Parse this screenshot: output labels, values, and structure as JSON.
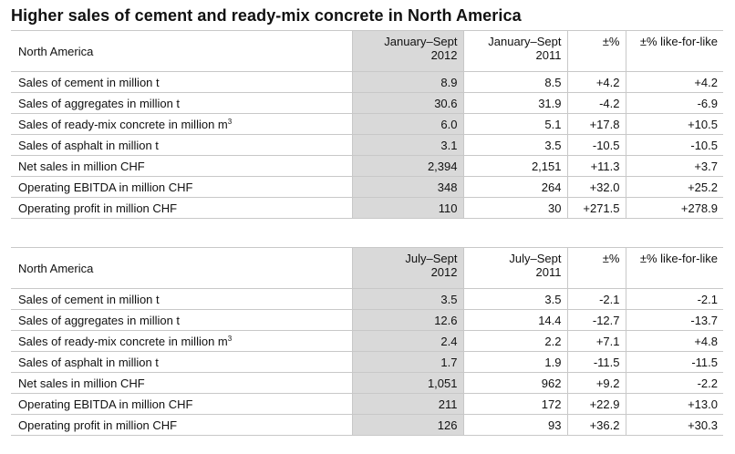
{
  "title": "Higher sales of cement and ready-mix concrete in North America",
  "tables": [
    {
      "region": "North America",
      "col1": [
        "January–Sept",
        "2012"
      ],
      "col2": [
        "January–Sept",
        "2011"
      ],
      "col3": "±%",
      "col4": "±% like-for-like",
      "rows": [
        {
          "label": "Sales of cement in million t",
          "v1": "8.9",
          "v2": "8.5",
          "pct": "+4.2",
          "lfl": "+4.2"
        },
        {
          "label": "Sales of aggregates in million t",
          "v1": "30.6",
          "v2": "31.9",
          "pct": "-4.2",
          "lfl": "-6.9"
        },
        {
          "label": "Sales of ready-mix concrete in million m",
          "sup": "3",
          "v1": "6.0",
          "v2": "5.1",
          "pct": "+17.8",
          "lfl": "+10.5"
        },
        {
          "label": "Sales of asphalt in million t",
          "v1": "3.1",
          "v2": "3.5",
          "pct": "-10.5",
          "lfl": "-10.5"
        },
        {
          "label": "Net sales in million CHF",
          "v1": "2,394",
          "v2": "2,151",
          "pct": "+11.3",
          "lfl": "+3.7"
        },
        {
          "label": "Operating EBITDA in million CHF",
          "v1": "348",
          "v2": "264",
          "pct": "+32.0",
          "lfl": "+25.2"
        },
        {
          "label": "Operating profit in million CHF",
          "v1": "110",
          "v2": "30",
          "pct": "+271.5",
          "lfl": "+278.9"
        }
      ]
    },
    {
      "region": "North America",
      "col1": [
        "July–Sept",
        "2012"
      ],
      "col2": [
        "July–Sept",
        "2011"
      ],
      "col3": "±%",
      "col4": "±% like-for-like",
      "rows": [
        {
          "label": "Sales of cement in million t",
          "v1": "3.5",
          "v2": "3.5",
          "pct": "-2.1",
          "lfl": "-2.1"
        },
        {
          "label": "Sales of aggregates in million t",
          "v1": "12.6",
          "v2": "14.4",
          "pct": "-12.7",
          "lfl": "-13.7"
        },
        {
          "label": "Sales of ready-mix concrete in million m",
          "sup": "3",
          "v1": "2.4",
          "v2": "2.2",
          "pct": "+7.1",
          "lfl": "+4.8"
        },
        {
          "label": "Sales of asphalt in million t",
          "v1": "1.7",
          "v2": "1.9",
          "pct": "-11.5",
          "lfl": "-11.5"
        },
        {
          "label": "Net sales in million CHF",
          "v1": "1,051",
          "v2": "962",
          "pct": "+9.2",
          "lfl": "-2.2"
        },
        {
          "label": "Operating EBITDA in million CHF",
          "v1": "211",
          "v2": "172",
          "pct": "+22.9",
          "lfl": "+13.0"
        },
        {
          "label": "Operating profit in million CHF",
          "v1": "126",
          "v2": "93",
          "pct": "+36.2",
          "lfl": "+30.3"
        }
      ]
    }
  ]
}
